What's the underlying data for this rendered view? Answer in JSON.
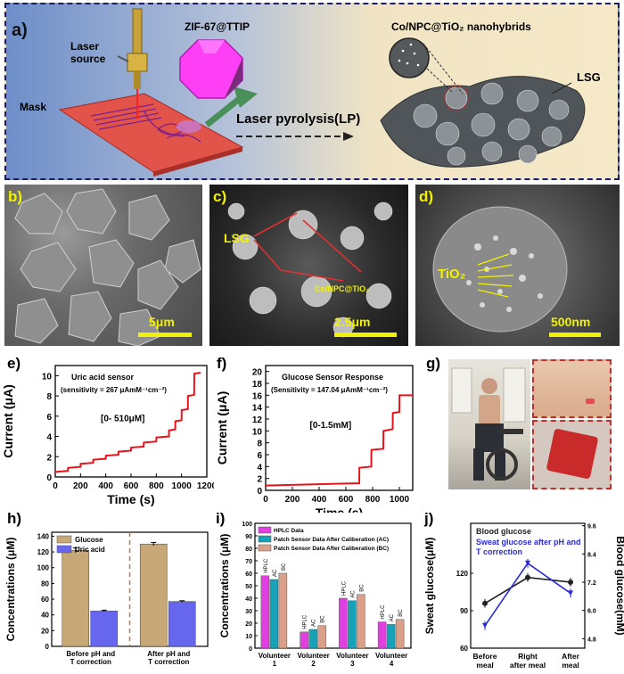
{
  "panels": {
    "a": {
      "letter": "a)",
      "laser_label": "Laser source",
      "mask_label": "Mask",
      "zif_label": "ZIF-67@TTIP",
      "process_label": "Laser pyrolysis(LP)",
      "hybrid_label": "Co/NPC@TiO₂ nanohybrids",
      "lsg_label": "LSG"
    },
    "b": {
      "letter": "b)",
      "scale": "5μm"
    },
    "c": {
      "letter": "c)",
      "scale": "2.5μm",
      "lsg_label": "LSG",
      "hybrid_label": "Co/NPC@TiO₂"
    },
    "d": {
      "letter": "d)",
      "scale": "500nm",
      "tio2_label": "TiO₂"
    },
    "e": {
      "letter": "e)"
    },
    "f": {
      "letter": "f)"
    },
    "g": {
      "letter": "g)"
    },
    "h": {
      "letter": "h)"
    },
    "i": {
      "letter": "i)"
    },
    "j": {
      "letter": "j)"
    }
  },
  "colors": {
    "trace_red": "#e8141c",
    "glucose_bar": "#c8a877",
    "uric_bar": "#6666ee",
    "hplc_bar": "#e040e0",
    "ac_bar": "#17a2b8",
    "bc_bar": "#dba08a",
    "blood_line": "#222222",
    "sweat_line": "#2a2ad8"
  },
  "chart_data": [
    {
      "id": "e",
      "type": "line",
      "title": "Uric acid sensor",
      "subtitle": "(sensitivity = 267 μAmM⁻¹cm⁻²)",
      "annotation": "[0- 510μM]",
      "xlabel": "Time (s)",
      "ylabel": "Current (μA)",
      "xlim": [
        0,
        1200
      ],
      "ylim": [
        0,
        11
      ],
      "xticks": [
        0,
        200,
        400,
        600,
        800,
        1000,
        1200
      ],
      "yticks": [
        0,
        2,
        4,
        6,
        8,
        10
      ],
      "x": [
        0,
        100,
        101,
        200,
        201,
        300,
        301,
        400,
        401,
        500,
        501,
        600,
        601,
        700,
        701,
        800,
        801,
        900,
        901,
        950,
        951,
        1000,
        1001,
        1050,
        1051,
        1100,
        1101,
        1150
      ],
      "y": [
        0.5,
        0.6,
        0.9,
        1.0,
        1.3,
        1.4,
        1.7,
        1.8,
        2.1,
        2.2,
        2.5,
        2.6,
        2.9,
        3.0,
        3.4,
        3.5,
        3.9,
        4.0,
        4.6,
        4.7,
        5.5,
        5.6,
        6.6,
        6.7,
        8.0,
        8.1,
        10.2,
        10.3
      ],
      "grid": false,
      "series_color": "#e8141c"
    },
    {
      "id": "f",
      "type": "line",
      "title": "Glucose Sensor Response",
      "subtitle": "(Sensitivity = 147.04 μAmM⁻¹cm⁻²)",
      "annotation": "[0-1.5mM]",
      "xlabel": "Time (s)",
      "ylabel": "Current (μA)",
      "xlim": [
        0,
        1100
      ],
      "ylim": [
        0,
        21
      ],
      "xticks": [
        0,
        200,
        400,
        600,
        800,
        1000
      ],
      "yticks": [
        0,
        2,
        4,
        6,
        8,
        10,
        12,
        14,
        16,
        18,
        20
      ],
      "x": [
        0,
        700,
        701,
        790,
        791,
        880,
        881,
        950,
        951,
        1000,
        1001,
        1100
      ],
      "y": [
        0.8,
        1.2,
        3.8,
        4.0,
        6.8,
        7.0,
        10.0,
        10.3,
        13.0,
        13.2,
        16.0,
        16.0
      ],
      "grid": false,
      "series_color": "#e8141c"
    },
    {
      "id": "h",
      "type": "bar",
      "categories": [
        "Before pH and T correction",
        "After pH and T correction"
      ],
      "series": [
        {
          "name": "Glucose",
          "values": [
            122,
            130
          ],
          "errors": [
            3,
            2
          ]
        },
        {
          "name": "Uric acid",
          "values": [
            45,
            57
          ],
          "errors": [
            1,
            1
          ]
        }
      ],
      "ylabel": "Concentrations (μM)",
      "ylim": [
        0,
        145
      ],
      "yticks": [
        0,
        20,
        40,
        60,
        80,
        100,
        120,
        140
      ],
      "legend": "top-left"
    },
    {
      "id": "i",
      "type": "bar",
      "categories": [
        "Volunteer 1",
        "Volunteer 2",
        "Volunteer 3",
        "Volunteer 4"
      ],
      "series": [
        {
          "name": "HPLC Data",
          "short": "HPLC",
          "values": [
            58,
            13,
            40,
            21
          ]
        },
        {
          "name": "Patch Sensor Data After Caliberation (AC)",
          "short": "AC",
          "values": [
            55,
            15,
            38,
            19
          ]
        },
        {
          "name": "Patch Sensor Data After Caliberation (BC)",
          "short": "BC",
          "values": [
            60,
            18,
            43,
            23
          ]
        }
      ],
      "ylabel": "Concentrations (μM)",
      "ylim": [
        0,
        100
      ],
      "yticks": [
        0,
        10,
        20,
        30,
        40,
        50,
        60,
        70,
        80,
        90,
        100
      ],
      "legend": "top"
    },
    {
      "id": "j",
      "type": "line",
      "categories": [
        "Before meal",
        "Right after meal",
        "After meal"
      ],
      "series": [
        {
          "name": "Blood glucose",
          "values": [
            6.3,
            7.4,
            7.2
          ],
          "axis": "right"
        },
        {
          "name": "Sweat glucose after pH and T correction",
          "values": [
            78,
            128,
            104
          ],
          "axis": "left"
        }
      ],
      "ylabel": "Sweat glucose(μM)",
      "ylabel_right": "Blood glucose(mM)",
      "ylim": [
        60,
        160
      ],
      "yticks": [
        60,
        90,
        120
      ],
      "ylim_right": [
        4.4,
        9.7
      ],
      "yticks_right": [
        4.8,
        6.0,
        7.2,
        8.4,
        9.6
      ],
      "legend": "top-left"
    }
  ]
}
